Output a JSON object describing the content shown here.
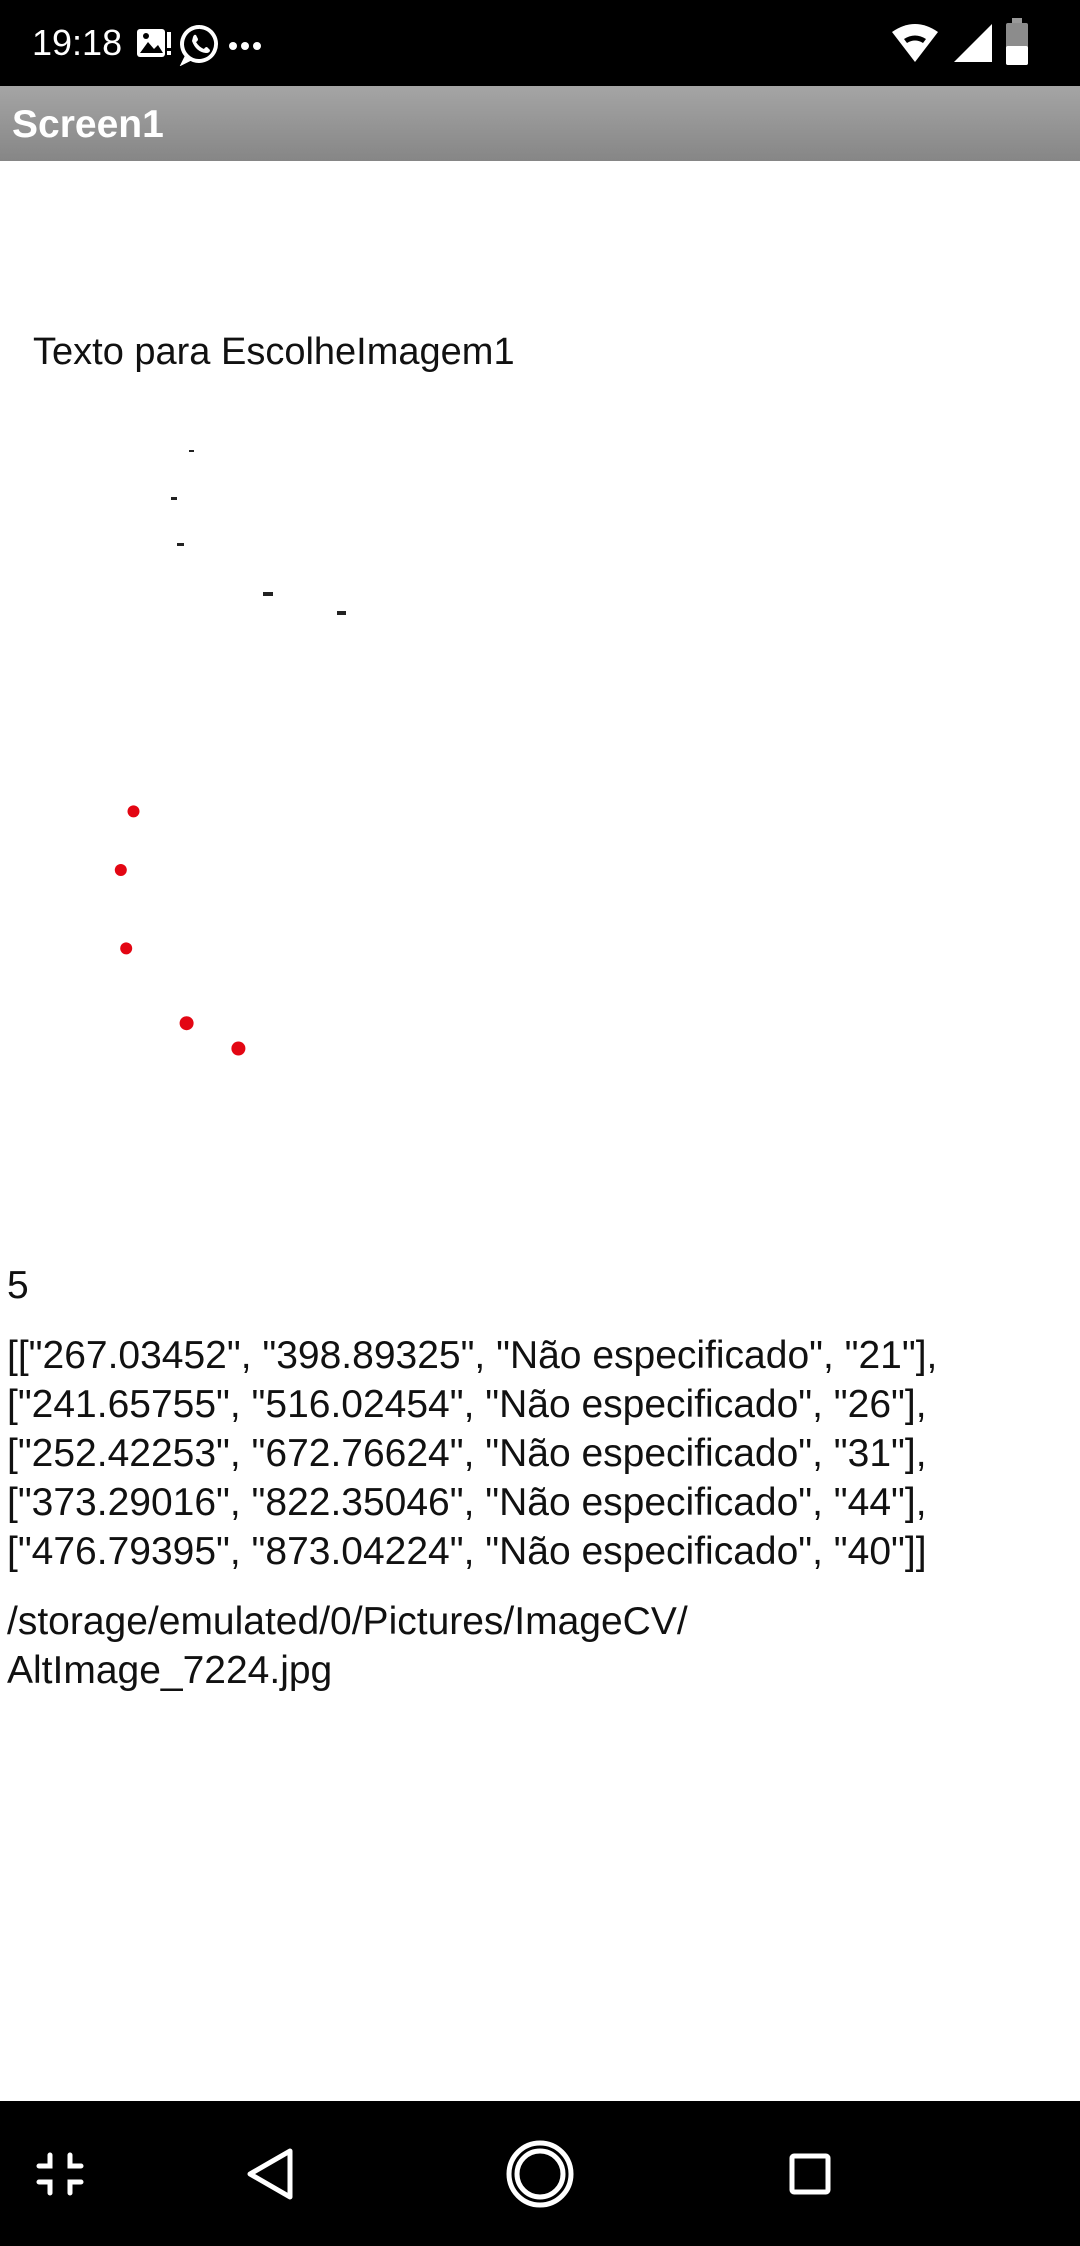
{
  "status_bar": {
    "time": "19:18",
    "icons": [
      "gallery-notification-icon",
      "whatsapp-icon",
      "more-notifications-icon",
      "wifi-icon",
      "cell-signal-icon",
      "battery-icon"
    ]
  },
  "app_bar": {
    "title": "Screen1"
  },
  "image_picker": {
    "label": "Texto para EscolheImagem1"
  },
  "results": {
    "count": "5",
    "list_lines": [
      "[[\"267.03452\", \"398.89325\", \"Não especificado\", \"21\"],",
      "[\"241.65755\", \"516.02454\", \"Não especificado\", \"26\"],",
      "[\"252.42253\", \"672.76624\", \"Não especificado\", \"31\"],",
      "[\"373.29016\", \"822.35046\", \"Não especificado\", \"44\"],",
      "[\"476.79395\", \"873.04224\", \"Não especificado\", \"40\"]]"
    ],
    "path_lines": [
      "/storage/emulated/0/Pictures/ImageCV/",
      "AltImage_7224.jpg"
    ]
  },
  "canvas": {
    "dot_color": "#e30613",
    "marks": [
      {
        "x": 267.03452,
        "y": 398.89325
      },
      {
        "x": 241.65755,
        "y": 516.02454
      },
      {
        "x": 252.42253,
        "y": 672.76624
      },
      {
        "x": 373.29016,
        "y": 822.35046
      },
      {
        "x": 476.79395,
        "y": 873.04224
      }
    ]
  },
  "nav_bar": {
    "buttons": [
      "collapse-icon",
      "back-icon",
      "home-icon",
      "recents-icon"
    ]
  }
}
